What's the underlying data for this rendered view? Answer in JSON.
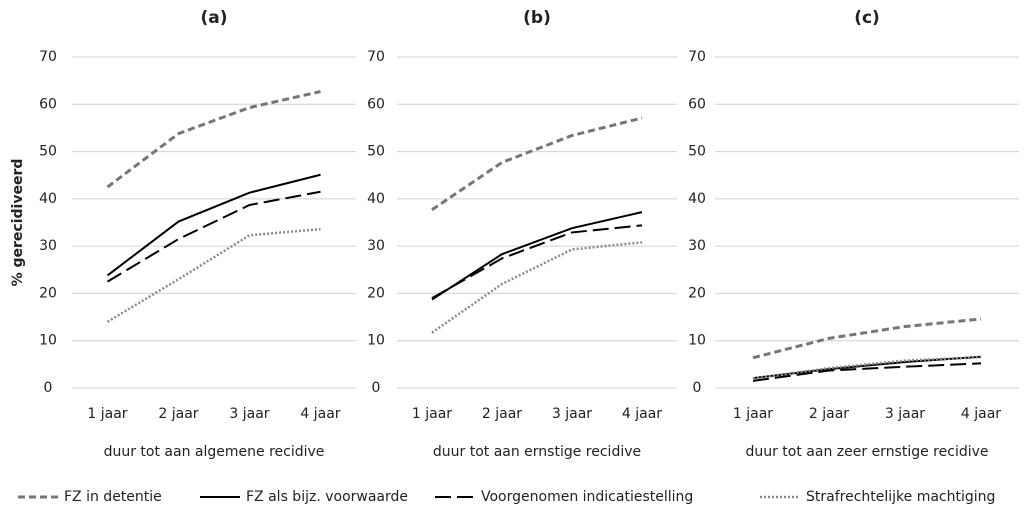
{
  "chart_data": [
    {
      "type": "line",
      "title": "(a)",
      "y_label": "% gerecidiveerd",
      "x_label": "duur tot aan algemene recidive",
      "categories": [
        "1 jaar",
        "2 jaar",
        "3 jaar",
        "4 jaar"
      ],
      "ylim": [
        0,
        70
      ],
      "yticks": [
        0,
        10,
        20,
        30,
        40,
        50,
        60,
        70
      ],
      "grid": true,
      "series": [
        {
          "name": "FZ in detentie",
          "color": "#767676",
          "style": "dashed",
          "values": [
            42.5,
            53.8,
            59.3,
            62.7
          ]
        },
        {
          "name": "FZ als bijz. voorwaarde",
          "color": "#000000",
          "style": "solid",
          "values": [
            23.8,
            35.2,
            41.3,
            45.1
          ]
        },
        {
          "name": "Voorgenomen indicatiestelling",
          "color": "#000000",
          "style": "longdash",
          "values": [
            22.5,
            31.5,
            38.7,
            41.5
          ]
        },
        {
          "name": "Strafrechtelijke machtiging",
          "color": "#8a8a8a",
          "style": "dotted",
          "values": [
            14,
            23,
            32.3,
            33.6
          ]
        }
      ]
    },
    {
      "type": "line",
      "title": "(b)",
      "x_label": "duur tot aan ernstige recidive",
      "categories": [
        "1 jaar",
        "2 jaar",
        "3 jaar",
        "4 jaar"
      ],
      "ylim": [
        0,
        70
      ],
      "yticks": [
        0,
        10,
        20,
        30,
        40,
        50,
        60,
        70
      ],
      "grid": true,
      "series": [
        {
          "color": "#767676",
          "style": "dashed",
          "values": [
            37.7,
            47.7,
            53.4,
            57.1
          ]
        },
        {
          "color": "#000000",
          "style": "solid",
          "values": [
            18.7,
            28.3,
            33.8,
            37.2
          ]
        },
        {
          "color": "#000000",
          "style": "longdash",
          "values": [
            19,
            27.4,
            32.9,
            34.4
          ]
        },
        {
          "color": "#8a8a8a",
          "style": "dotted",
          "values": [
            11.7,
            22,
            29.3,
            30.8
          ]
        }
      ]
    },
    {
      "type": "line",
      "title": "(c)",
      "x_label": "duur tot aan zeer ernstige recidive",
      "categories": [
        "1 jaar",
        "2 jaar",
        "3 jaar",
        "4 jaar"
      ],
      "ylim": [
        0,
        70
      ],
      "yticks": [
        0,
        10,
        20,
        30,
        40,
        50,
        60,
        70
      ],
      "grid": true,
      "series": [
        {
          "color": "#767676",
          "style": "dashed",
          "values": [
            6.4,
            10.5,
            13,
            14.6
          ]
        },
        {
          "color": "#000000",
          "style": "solid",
          "values": [
            2.1,
            4,
            5.5,
            6.6
          ]
        },
        {
          "color": "#000000",
          "style": "longdash",
          "values": [
            1.5,
            3.7,
            4.5,
            5.2
          ]
        },
        {
          "color": "#8a8a8a",
          "style": "dotted",
          "values": [
            2,
            4.2,
            5.8,
            6.5
          ]
        }
      ]
    }
  ]
}
